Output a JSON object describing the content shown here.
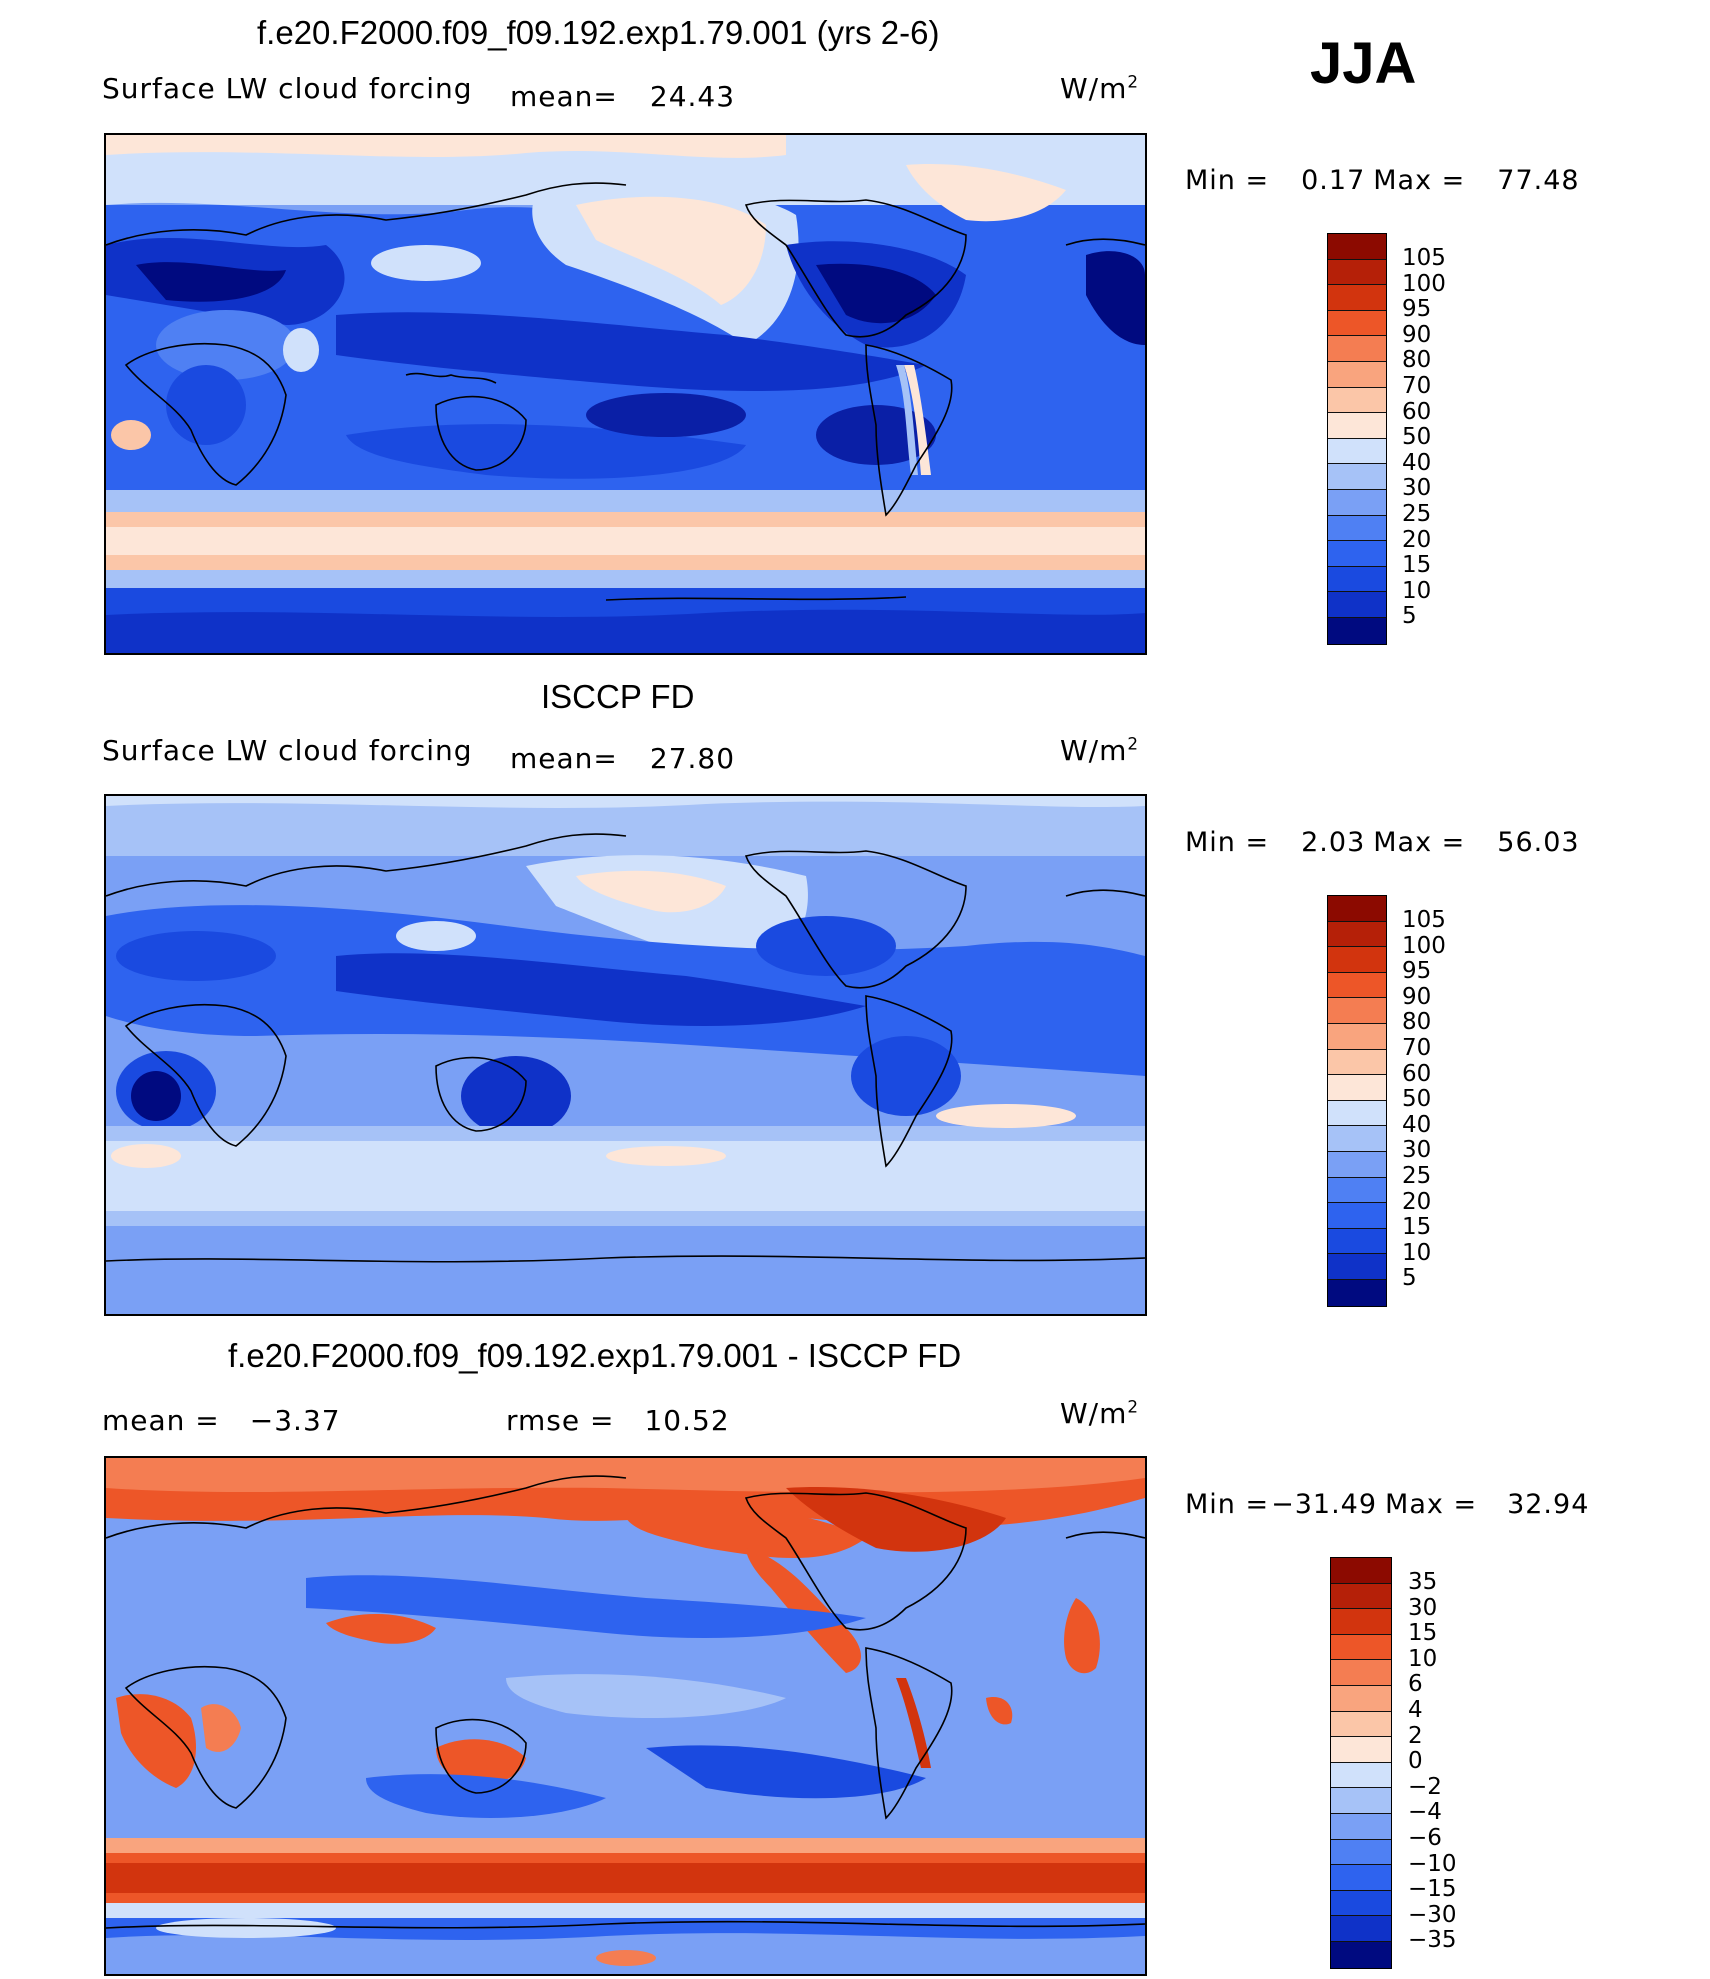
{
  "season": "JJA",
  "units_base": "W/m",
  "units_exp": "2",
  "panels": [
    {
      "title": "f.e20.F2000.f09_f09.192.exp1.79.001 (yrs 2-6)",
      "variable": "Surface LW cloud forcing",
      "mean_label": "mean=",
      "mean_value": "24.43",
      "min_label": "Min =",
      "min_value": "0.17",
      "max_label": "Max =",
      "max_value": "77.48",
      "colorbar_labels": [
        "105",
        "100",
        "95",
        "90",
        "80",
        "70",
        "60",
        "50",
        "40",
        "30",
        "25",
        "20",
        "15",
        "10",
        "5"
      ]
    },
    {
      "title": "ISCCP FD",
      "variable": "Surface LW cloud forcing",
      "mean_label": "mean=",
      "mean_value": "27.80",
      "min_label": "Min =",
      "min_value": "2.03",
      "max_label": "Max =",
      "max_value": "56.03",
      "colorbar_labels": [
        "105",
        "100",
        "95",
        "90",
        "80",
        "70",
        "60",
        "50",
        "40",
        "30",
        "25",
        "20",
        "15",
        "10",
        "5"
      ]
    },
    {
      "title": "f.e20.F2000.f09_f09.192.exp1.79.001 - ISCCP FD",
      "mean_label": "mean =",
      "mean_value": "−3.37",
      "rmse_label": "rmse =",
      "rmse_value": "10.52",
      "min_label": "Min =",
      "min_value": "−31.49",
      "max_label": "Max =",
      "max_value": "32.94",
      "colorbar_labels": [
        "35",
        "30",
        "15",
        "10",
        "6",
        "4",
        "2",
        "0",
        "−2",
        "−4",
        "−6",
        "−10",
        "−15",
        "−30",
        "−35"
      ]
    }
  ],
  "colors": {
    "abs_scale": [
      "#000a80",
      "#0a1fa6",
      "#0f32c8",
      "#1a4ae0",
      "#2e63ef",
      "#4f80f3",
      "#7aa0f5",
      "#a6c2f7",
      "#d0e1fb",
      "#fde6d8",
      "#fbc6a8",
      "#f9a47e",
      "#f47d52",
      "#ed5628",
      "#d2340e",
      "#8c0a00"
    ],
    "diff_scale": [
      "#000a80",
      "#0a1fa6",
      "#0f32c8",
      "#1a4ae0",
      "#2e63ef",
      "#4f80f3",
      "#7aa0f5",
      "#a6c2f7",
      "#d0e1fb",
      "#fde6d8",
      "#fbc6a8",
      "#f9a47e",
      "#f47d52",
      "#ed5628",
      "#d2340e",
      "#8c0a00"
    ]
  }
}
